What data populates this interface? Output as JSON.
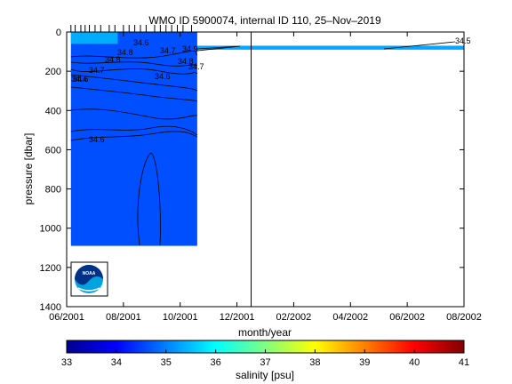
{
  "chart_data": {
    "type": "heatmap",
    "title": "WMO ID 5900074, internal ID 110, 25–Nov–2019",
    "xlabel": "month/year",
    "ylabel": "pressure [dbar]",
    "colorbar_label": "salinity [psu]",
    "x_ticks": [
      "06/2001",
      "08/2001",
      "10/2001",
      "12/2001",
      "02/2002",
      "04/2002",
      "06/2002",
      "08/2002"
    ],
    "y_ticks": [
      "0",
      "200",
      "400",
      "600",
      "800",
      "1000",
      "1200",
      "1400"
    ],
    "colorbar_ticks": [
      "33",
      "34",
      "35",
      "36",
      "37",
      "38",
      "39",
      "40",
      "41"
    ],
    "xlim_months": [
      0,
      14
    ],
    "ylim": [
      1400,
      0
    ],
    "clim": [
      33,
      41
    ],
    "colormap": "jet",
    "grid": false,
    "profile_months": [
      0.15,
      0.3,
      0.5,
      0.65,
      0.8,
      1.0,
      1.2,
      1.5,
      1.7,
      2.0,
      2.2,
      2.4,
      2.6,
      2.8,
      3.1,
      3.3,
      3.5,
      3.7,
      3.9,
      4.1,
      4.4
    ],
    "data_regions": [
      {
        "month_start": 0.15,
        "month_end": 4.6,
        "pressure_top": 0,
        "pressure_bottom": 1090,
        "salinity": 34.62
      },
      {
        "month_start": 0.15,
        "month_end": 1.8,
        "pressure_top": 0,
        "pressure_bottom": 60,
        "salinity": 35.35
      },
      {
        "month_start": 4.6,
        "month_end": 14,
        "pressure_top": 70,
        "pressure_bottom": 90,
        "salinity": 35.3
      }
    ],
    "contour_labels": [
      "34.6",
      "34.8",
      "34.7",
      "34.9",
      "34.7",
      "34.8",
      "34.7",
      "34.8",
      "34.6",
      "34.6",
      "34.6",
      "34.5",
      "34.4"
    ],
    "vertical_marker_month": 6.5
  },
  "logo": {
    "name": "NOAA",
    "colors": {
      "dark": "#003087",
      "light": "#00a3e0"
    }
  }
}
